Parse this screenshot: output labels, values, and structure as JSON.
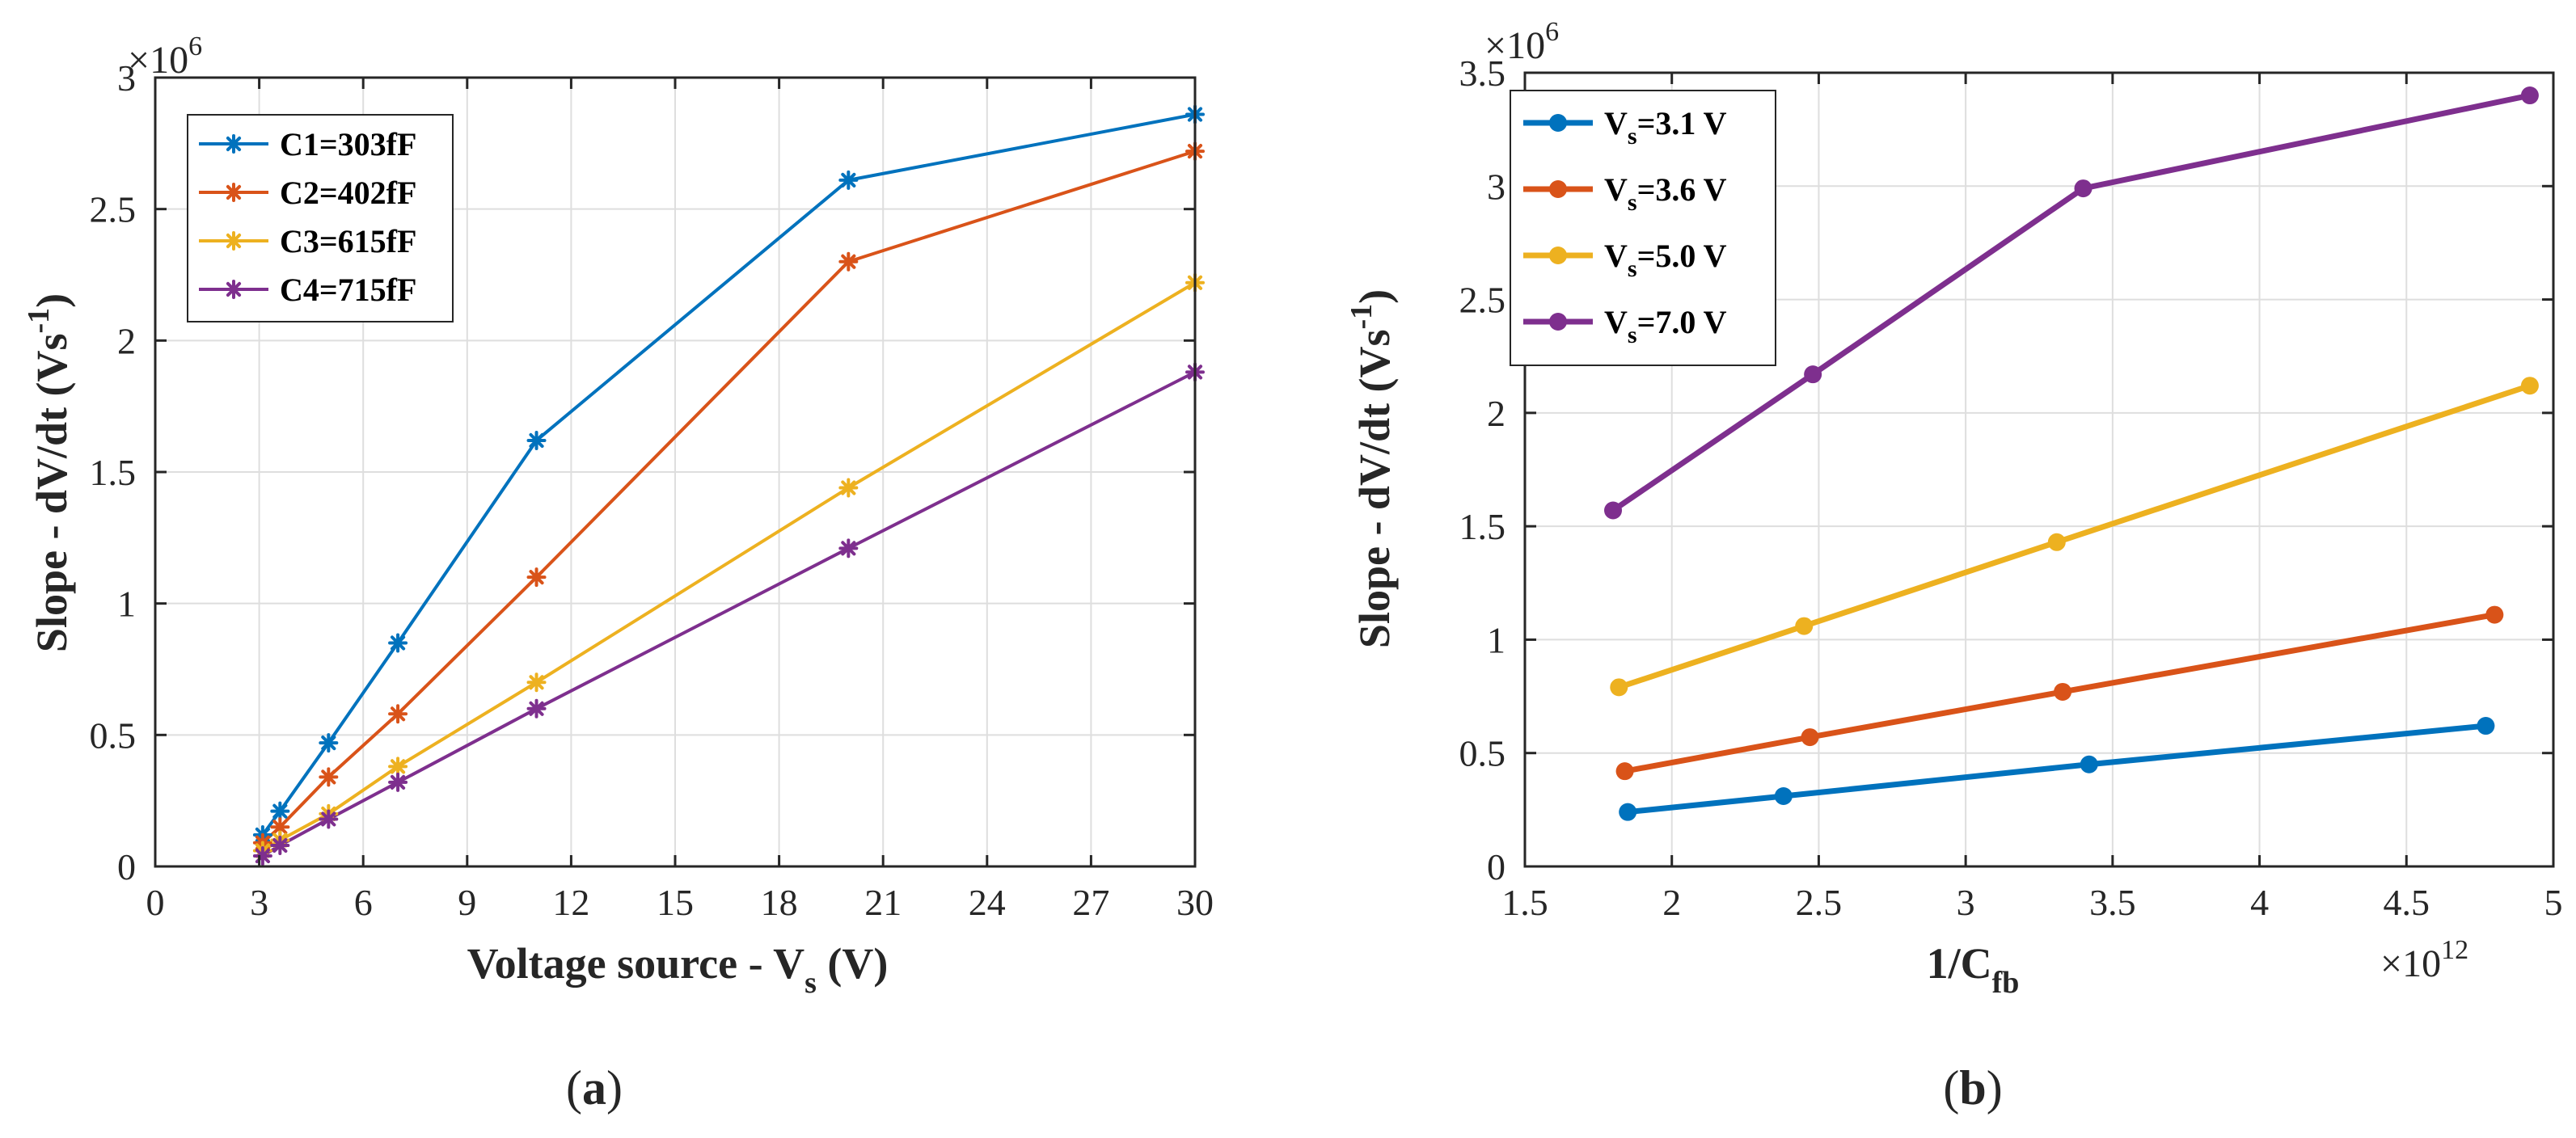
{
  "chart_data": [
    {
      "type": "line",
      "caption": "a",
      "xlabel_main": "Voltage source - V",
      "xlabel_sub": "s",
      "xlabel_tail": " (V)",
      "ylabel_main": "Slope - dV/dt (Vs",
      "ylabel_sup": "-1",
      "ylabel_tail": ")",
      "y_exponent_base": "×10",
      "y_exponent_power": "6",
      "xlim": [
        0,
        30
      ],
      "ylim": [
        0,
        3
      ],
      "xticks": [
        0,
        3,
        6,
        9,
        12,
        15,
        18,
        21,
        24,
        27,
        30
      ],
      "xtick_labels": [
        "0",
        "3",
        "6",
        "9",
        "12",
        "15",
        "18",
        "21",
        "24",
        "27",
        "30"
      ],
      "yticks": [
        0,
        0.5,
        1,
        1.5,
        2,
        2.5,
        3
      ],
      "ytick_labels": [
        "0",
        "0.5",
        "1",
        "1.5",
        "2",
        "2.5",
        "3"
      ],
      "grid": true,
      "marker": "asterisk",
      "legend_position": "top-left",
      "series": [
        {
          "name": "C1=303fF",
          "color": "#0072BD",
          "x": [
            3.1,
            3.6,
            5.0,
            7.0,
            11.0,
            20.0,
            30.0
          ],
          "y": [
            0.12,
            0.21,
            0.47,
            0.85,
            1.62,
            2.61,
            2.86
          ]
        },
        {
          "name": "C2=402fF",
          "color": "#D95319",
          "x": [
            3.1,
            3.6,
            5.0,
            7.0,
            11.0,
            20.0,
            30.0
          ],
          "y": [
            0.09,
            0.15,
            0.34,
            0.58,
            1.1,
            2.3,
            2.72
          ]
        },
        {
          "name": "C3=615fF",
          "color": "#EDB120",
          "x": [
            3.1,
            3.6,
            5.0,
            7.0,
            11.0,
            20.0,
            30.0
          ],
          "y": [
            0.06,
            0.1,
            0.2,
            0.38,
            0.7,
            1.44,
            2.22
          ]
        },
        {
          "name": "C4=715fF",
          "color": "#7E2F8E",
          "x": [
            3.1,
            3.6,
            5.0,
            7.0,
            11.0,
            20.0,
            30.0
          ],
          "y": [
            0.04,
            0.08,
            0.18,
            0.32,
            0.6,
            1.21,
            1.88
          ]
        }
      ]
    },
    {
      "type": "line",
      "caption": "b",
      "xlabel_main": "1/C",
      "xlabel_sub": "fb",
      "xlabel_tail": "",
      "ylabel_main": "Slope - dV/dt (Vs",
      "ylabel_sup": "-1",
      "ylabel_tail": ")",
      "y_exponent_base": "×10",
      "y_exponent_power": "6",
      "x_exponent_base": "×10",
      "x_exponent_power": "12",
      "xlim": [
        1.5,
        5
      ],
      "ylim": [
        0,
        3.5
      ],
      "xticks": [
        1.5,
        2,
        2.5,
        3,
        3.5,
        4,
        4.5,
        5
      ],
      "xtick_labels": [
        "1.5",
        "2",
        "2.5",
        "3",
        "3.5",
        "4",
        "4.5",
        "5"
      ],
      "yticks": [
        0,
        0.5,
        1,
        1.5,
        2,
        2.5,
        3,
        3.5
      ],
      "ytick_labels": [
        "0",
        "0.5",
        "1",
        "1.5",
        "2",
        "2.5",
        "3",
        "3.5"
      ],
      "grid": true,
      "marker": "circle",
      "legend_position": "top-left",
      "series": [
        {
          "name_main": "V",
          "name_sub": "s",
          "name_tail": "=3.1 V",
          "color": "#0072BD",
          "x": [
            1.85,
            2.38,
            3.42,
            4.77
          ],
          "y": [
            0.24,
            0.31,
            0.45,
            0.62
          ]
        },
        {
          "name_main": "V",
          "name_sub": "s",
          "name_tail": "=3.6 V",
          "color": "#D95319",
          "x": [
            1.84,
            2.47,
            3.33,
            4.8
          ],
          "y": [
            0.42,
            0.57,
            0.77,
            1.11
          ]
        },
        {
          "name_main": "V",
          "name_sub": "s",
          "name_tail": "=5.0 V",
          "color": "#EDB120",
          "x": [
            1.82,
            2.45,
            3.31,
            4.92
          ],
          "y": [
            0.79,
            1.06,
            1.43,
            2.12
          ]
        },
        {
          "name_main": "V",
          "name_sub": "s",
          "name_tail": "=7.0 V",
          "color": "#7E2F8E",
          "x": [
            1.8,
            2.48,
            3.4,
            4.92
          ],
          "y": [
            1.57,
            2.17,
            2.99,
            3.4
          ]
        }
      ]
    }
  ]
}
